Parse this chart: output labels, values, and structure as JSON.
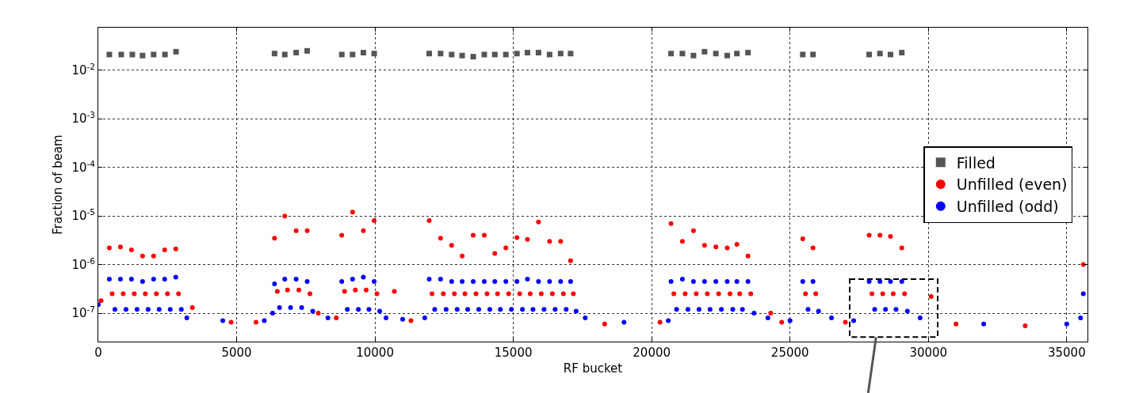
{
  "chart_data": {
    "type": "scatter",
    "xlabel": "RF bucket",
    "ylabel": "Fraction of beam",
    "xlim": [
      0,
      35750
    ],
    "xticks": [
      0,
      5000,
      10000,
      15000,
      20000,
      25000,
      30000,
      35000
    ],
    "ylim": [
      2.6e-08,
      0.075
    ],
    "log": "y",
    "yticks": [
      {
        "value": 1e-07,
        "label": "10$^{-7}$"
      },
      {
        "value": 1e-06,
        "label": "10$^{-6}$"
      },
      {
        "value": 1e-05,
        "label": "10$^{-5}$"
      },
      {
        "value": 0.0001,
        "label": "10$^{-4}$"
      },
      {
        "value": 0.001,
        "label": "10$^{-3}$"
      },
      {
        "value": 0.01,
        "label": "10$^{-2}$"
      }
    ],
    "grid": true,
    "legend": "right",
    "series": [
      {
        "name": "Filled",
        "color": "#555555",
        "marker": "square",
        "x": [
          400,
          830,
          1230,
          1600,
          2000,
          2410,
          2810,
          6370,
          6740,
          7150,
          7550,
          8800,
          9190,
          9580,
          9970,
          11960,
          12370,
          12770,
          13150,
          13550,
          13950,
          14330,
          14730,
          15130,
          15510,
          15910,
          16310,
          16710,
          17070,
          20700,
          21110,
          21510,
          21910,
          22320,
          22730,
          23080,
          23480,
          25460,
          25830,
          27860,
          28250,
          28630,
          29040
        ],
        "values": [
          0.021,
          0.021,
          0.021,
          0.02,
          0.021,
          0.021,
          0.024,
          0.022,
          0.021,
          0.023,
          0.025,
          0.021,
          0.021,
          0.023,
          0.022,
          0.022,
          0.022,
          0.021,
          0.02,
          0.019,
          0.021,
          0.021,
          0.021,
          0.022,
          0.023,
          0.023,
          0.021,
          0.022,
          0.022,
          0.022,
          0.022,
          0.02,
          0.024,
          0.022,
          0.02,
          0.022,
          0.023,
          0.021,
          0.021,
          0.021,
          0.022,
          0.021,
          0.023
        ]
      },
      {
        "name": "Unfilled (even)",
        "color": "#ff0000",
        "marker": "circle",
        "x": [
          100,
          400,
          500,
          800,
          900,
          1200,
          1300,
          1600,
          1700,
          2000,
          2100,
          2400,
          2500,
          2800,
          2900,
          3400,
          4800,
          5700,
          6370,
          6470,
          6740,
          6840,
          7150,
          7250,
          7550,
          7650,
          7950,
          8600,
          8800,
          8900,
          9190,
          9290,
          9580,
          9680,
          9970,
          10070,
          10700,
          11300,
          11960,
          12060,
          12370,
          12470,
          12770,
          12870,
          13150,
          13250,
          13550,
          13650,
          13950,
          14050,
          14330,
          14430,
          14730,
          14830,
          15130,
          15230,
          15510,
          15610,
          15910,
          16010,
          16310,
          16410,
          16710,
          16810,
          17070,
          17170,
          18300,
          20300,
          20700,
          20800,
          21110,
          21210,
          21510,
          21610,
          21910,
          22010,
          22320,
          22420,
          22730,
          22830,
          23080,
          23180,
          23480,
          23580,
          24300,
          24700,
          25460,
          25560,
          25830,
          25930,
          27000,
          27860,
          27960,
          28250,
          28350,
          28630,
          28730,
          29040,
          29140,
          30100,
          31000,
          33500,
          35600
        ],
        "values": [
          1.8e-07,
          2.2e-06,
          2.5e-07,
          2.3e-06,
          2.5e-07,
          2e-06,
          2.5e-07,
          1.5e-06,
          2.5e-07,
          1.5e-06,
          2.5e-07,
          2e-06,
          2.5e-07,
          2.1e-06,
          2.5e-07,
          1.3e-07,
          6.5e-08,
          6.5e-08,
          3.5e-06,
          2.8e-07,
          1e-05,
          3e-07,
          5e-06,
          3e-07,
          5e-06,
          2.5e-07,
          1e-07,
          8e-08,
          4e-06,
          2.8e-07,
          1.2e-05,
          3e-07,
          5e-06,
          3e-07,
          8e-06,
          2.5e-07,
          2.8e-07,
          7e-08,
          8e-06,
          2.5e-07,
          3.5e-06,
          2.5e-07,
          2.5e-06,
          2.5e-07,
          1.5e-06,
          2.5e-07,
          4e-06,
          2.5e-07,
          4e-06,
          2.5e-07,
          1.7e-06,
          2.5e-07,
          2.2e-06,
          2.5e-07,
          3.6e-06,
          2.5e-07,
          3.3e-06,
          2.5e-07,
          7.5e-06,
          2.5e-07,
          3e-06,
          2.5e-07,
          3e-06,
          2.5e-07,
          1.2e-06,
          2.5e-07,
          6e-08,
          6.5e-08,
          7e-06,
          2.5e-07,
          3e-06,
          2.5e-07,
          5e-06,
          2.5e-07,
          2.5e-06,
          2.5e-07,
          2.3e-06,
          2.5e-07,
          2.2e-06,
          2.5e-07,
          2.6e-06,
          2.5e-07,
          1.5e-06,
          2.5e-07,
          1e-07,
          6.5e-08,
          3.4e-06,
          2.5e-07,
          2.2e-06,
          2.5e-07,
          6.5e-08,
          4e-06,
          2.5e-07,
          4e-06,
          2.5e-07,
          3.8e-06,
          2.5e-07,
          2.2e-06,
          2.5e-07,
          2.2e-07,
          6e-08,
          5.5e-08,
          1e-06
        ]
      },
      {
        "name": "Unfilled (odd)",
        "color": "#0000ff",
        "marker": "circle",
        "x": [
          0,
          400,
          600,
          800,
          1000,
          1200,
          1400,
          1600,
          1800,
          2000,
          2200,
          2400,
          2600,
          2800,
          3000,
          3200,
          4500,
          6000,
          6300,
          6370,
          6550,
          6740,
          6950,
          7150,
          7350,
          7550,
          7750,
          8300,
          8800,
          9000,
          9190,
          9400,
          9580,
          9780,
          9970,
          10170,
          10400,
          11000,
          11800,
          11960,
          12160,
          12370,
          12570,
          12770,
          12970,
          13150,
          13350,
          13550,
          13750,
          13950,
          14150,
          14330,
          14530,
          14730,
          14930,
          15130,
          15330,
          15510,
          15710,
          15910,
          16110,
          16310,
          16510,
          16710,
          16910,
          17070,
          17270,
          17600,
          19000,
          20600,
          20700,
          20900,
          21110,
          21310,
          21510,
          21710,
          21910,
          22110,
          22320,
          22520,
          22730,
          22930,
          23080,
          23280,
          23480,
          23700,
          24200,
          25000,
          25460,
          25650,
          25830,
          26030,
          26500,
          27300,
          27860,
          28060,
          28250,
          28450,
          28630,
          28830,
          29040,
          29240,
          29700,
          32000,
          35000,
          35500,
          35600
        ],
        "values": [
          1.5e-07,
          5e-07,
          1.2e-07,
          5e-07,
          1.2e-07,
          5e-07,
          1.2e-07,
          4.5e-07,
          1.2e-07,
          5e-07,
          1.2e-07,
          5e-07,
          1.2e-07,
          5.5e-07,
          1.2e-07,
          8e-08,
          7e-08,
          7e-08,
          1e-07,
          4e-07,
          1.3e-07,
          5e-07,
          1.3e-07,
          5e-07,
          1.3e-07,
          4.5e-07,
          1.1e-07,
          8e-08,
          4.5e-07,
          1.2e-07,
          5e-07,
          1.2e-07,
          5.5e-07,
          1.2e-07,
          4.5e-07,
          1.1e-07,
          8e-08,
          7.5e-08,
          8e-08,
          5e-07,
          1.2e-07,
          5e-07,
          1.2e-07,
          4.5e-07,
          1.2e-07,
          4.5e-07,
          1.2e-07,
          4.5e-07,
          1.2e-07,
          4.5e-07,
          1.2e-07,
          4.5e-07,
          1.2e-07,
          4.5e-07,
          1.2e-07,
          4.5e-07,
          1.2e-07,
          5e-07,
          1.2e-07,
          4.5e-07,
          1.2e-07,
          4.5e-07,
          1.2e-07,
          4.5e-07,
          1.2e-07,
          4.5e-07,
          1.1e-07,
          8e-08,
          6.5e-08,
          7e-08,
          4.5e-07,
          1.2e-07,
          5e-07,
          1.2e-07,
          4.5e-07,
          1.2e-07,
          4.5e-07,
          1.2e-07,
          4.5e-07,
          1.2e-07,
          4.5e-07,
          1.2e-07,
          4.5e-07,
          1.2e-07,
          4.5e-07,
          1e-07,
          8e-08,
          7e-08,
          4.5e-07,
          1.2e-07,
          4.5e-07,
          1.1e-07,
          8e-08,
          7e-08,
          4.5e-07,
          1.2e-07,
          4.5e-07,
          1.2e-07,
          4.5e-07,
          1.2e-07,
          4.5e-07,
          1.1e-07,
          8e-08,
          6e-08,
          6e-08,
          8e-08,
          2.5e-07
        ]
      }
    ]
  }
}
